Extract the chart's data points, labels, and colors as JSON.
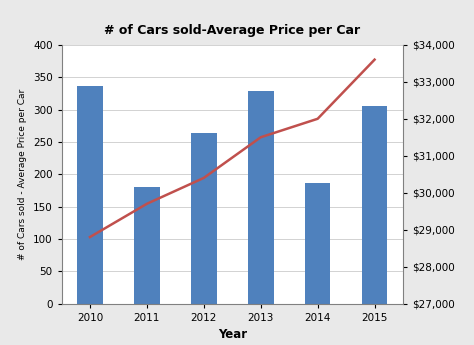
{
  "title": "# of Cars sold-Average Price per Car",
  "years": [
    2010,
    2011,
    2012,
    2013,
    2014,
    2015
  ],
  "cars_sold": [
    336,
    180,
    264,
    329,
    186,
    305
  ],
  "avg_price": [
    28800,
    29700,
    30400,
    31500,
    32000,
    33600
  ],
  "bar_color": "#4f81bd",
  "line_color": "#c0504d",
  "xlabel": "Year",
  "ylabel_left": "# of Cars sold - Average Price per Car",
  "ylim_left": [
    0,
    400
  ],
  "ylim_right": [
    27000,
    34000
  ],
  "yticks_left": [
    0,
    50,
    100,
    150,
    200,
    250,
    300,
    350,
    400
  ],
  "yticks_right": [
    27000,
    28000,
    29000,
    30000,
    31000,
    32000,
    33000,
    34000
  ],
  "outer_bg_color": "#e9e9e9",
  "plot_bg_color": "#ffffff"
}
